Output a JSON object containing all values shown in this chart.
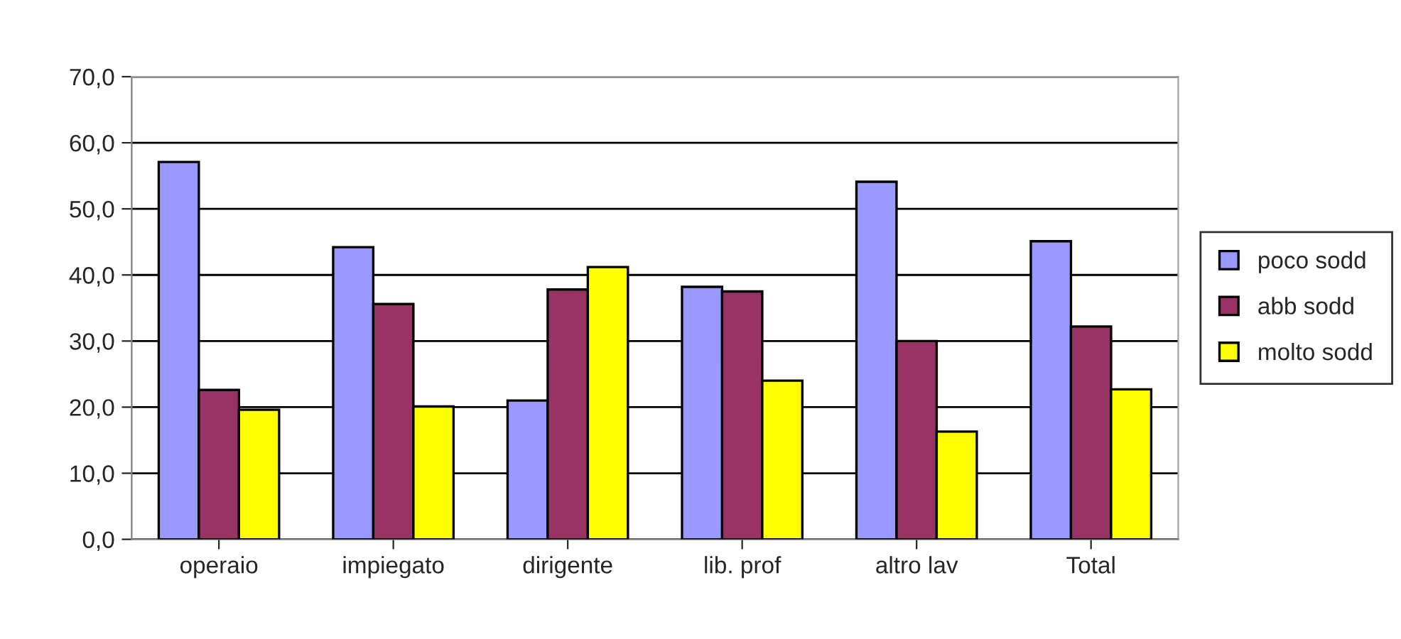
{
  "chart_data": {
    "type": "bar",
    "categories": [
      "operaio",
      "impiegato",
      "dirigente",
      "lib. prof",
      "altro lav",
      "Total"
    ],
    "series": [
      {
        "name": "poco sodd",
        "color": "#9999ff",
        "values": [
          57.1,
          44.2,
          21.0,
          38.2,
          54.1,
          45.1
        ]
      },
      {
        "name": "abb sodd",
        "color": "#993366",
        "values": [
          22.6,
          35.6,
          37.8,
          37.5,
          30.0,
          32.2
        ]
      },
      {
        "name": "molto sodd",
        "color": "#ffff00",
        "values": [
          19.6,
          20.1,
          41.2,
          24.0,
          16.3,
          22.7
        ]
      }
    ],
    "ylim": [
      0,
      70
    ],
    "yticks": [
      {
        "value": 0,
        "label": "0,0"
      },
      {
        "value": 10,
        "label": "10,0"
      },
      {
        "value": 20,
        "label": "20,0"
      },
      {
        "value": 30,
        "label": "30,0"
      },
      {
        "value": 40,
        "label": "40,0"
      },
      {
        "value": 50,
        "label": "50,0"
      },
      {
        "value": 60,
        "label": "60,0"
      },
      {
        "value": 70,
        "label": "70,0"
      }
    ],
    "grid": "y",
    "legend": "right"
  }
}
